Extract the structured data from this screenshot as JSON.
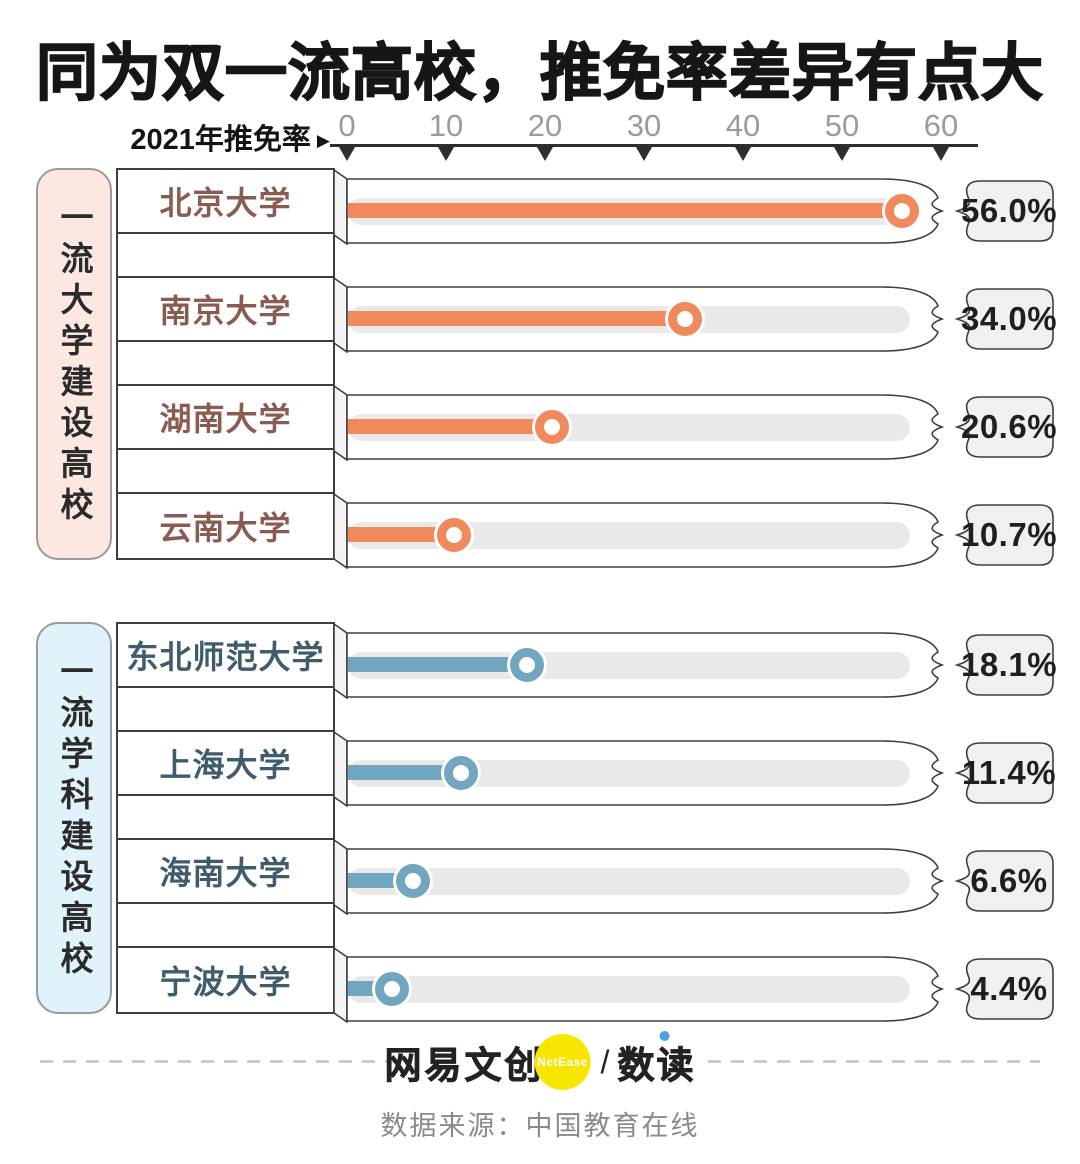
{
  "title": "同为双一流高校，推免率差异有点大",
  "axis": {
    "label": "2021年推免率",
    "arrow": "▶",
    "ticks": [
      "0",
      "10",
      "20",
      "30",
      "40",
      "50",
      "60"
    ]
  },
  "chart_data": {
    "type": "bar",
    "orientation": "horizontal",
    "title": "同为双一流高校，推免率差异有点大",
    "xlabel": "2021年推免率",
    "xlim": [
      0,
      60
    ],
    "x_ticks": [
      0,
      10,
      20,
      30,
      40,
      50,
      60
    ],
    "grid": false,
    "groups": [
      {
        "label": "一流大学建设高校",
        "bar_color": "#F0895C",
        "label_bg": "#FCE8E1",
        "name_color": "#8A5B51",
        "bars": [
          {
            "name": "北京大学",
            "value": 56.0,
            "display": "56.0%"
          },
          {
            "name": "南京大学",
            "value": 34.0,
            "display": "34.0%"
          },
          {
            "name": "湖南大学",
            "value": 20.6,
            "display": "20.6%"
          },
          {
            "name": "云南大学",
            "value": 10.7,
            "display": "10.7%"
          }
        ]
      },
      {
        "label": "一流学科建设高校",
        "bar_color": "#72A6BE",
        "label_bg": "#E0F2FA",
        "name_color": "#3F5C6B",
        "bars": [
          {
            "name": "东北师范大学",
            "value": 18.1,
            "display": "18.1%"
          },
          {
            "name": "上海大学",
            "value": 11.4,
            "display": "11.4%"
          },
          {
            "name": "海南大学",
            "value": 6.6,
            "display": "6.6%"
          },
          {
            "name": "宁波大学",
            "value": 4.4,
            "display": "4.4%"
          }
        ]
      }
    ]
  },
  "footer": {
    "brand_left": "网易文创",
    "badge": "NetEase",
    "separator": "/",
    "brand_right": "数读",
    "source": "数据来源：中国教育在线"
  }
}
